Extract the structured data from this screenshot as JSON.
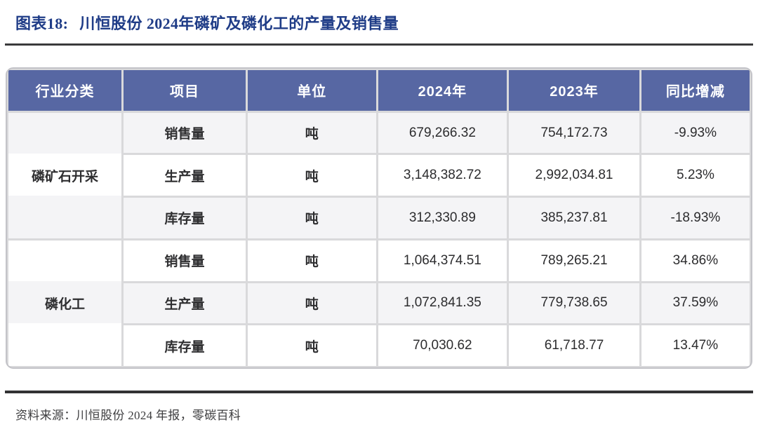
{
  "page": {
    "title_label": "图表18:",
    "title_text": "川恒股份 2024年磷矿及磷化工的产量及销售量",
    "source_text": "资料来源：川恒股份 2024 年报，零碳百科"
  },
  "colors": {
    "title_blue": "#1F3C87",
    "header_bg": "#5767A3",
    "header_text": "#FFFFFF",
    "alt_row_bg": "#F4F4F6",
    "divider": "#D9D9DB",
    "card_border": "#C3C3C8",
    "body_text": "#2E2E30",
    "rule": "#343436"
  },
  "table": {
    "columns": [
      "行业分类",
      "项目",
      "单位",
      "2024年",
      "2023年",
      "同比增减"
    ],
    "groups": [
      {
        "category": "磷矿石开采",
        "rows": [
          {
            "item": "销售量",
            "unit": "吨",
            "y2024": "679,266.32",
            "y2023": "754,172.73",
            "yoy": "-9.93%"
          },
          {
            "item": "生产量",
            "unit": "吨",
            "y2024": "3,148,382.72",
            "y2023": "2,992,034.81",
            "yoy": "5.23%"
          },
          {
            "item": "库存量",
            "unit": "吨",
            "y2024": "312,330.89",
            "y2023": "385,237.81",
            "yoy": "-18.93%"
          }
        ]
      },
      {
        "category": "磷化工",
        "rows": [
          {
            "item": "销售量",
            "unit": "吨",
            "y2024": "1,064,374.51",
            "y2023": "789,265.21",
            "yoy": "34.86%"
          },
          {
            "item": "生产量",
            "unit": "吨",
            "y2024": "1,072,841.35",
            "y2023": "779,738.65",
            "yoy": "37.59%"
          },
          {
            "item": "库存量",
            "unit": "吨",
            "y2024": "70,030.62",
            "y2023": "61,718.77",
            "yoy": "13.47%"
          }
        ]
      }
    ]
  }
}
